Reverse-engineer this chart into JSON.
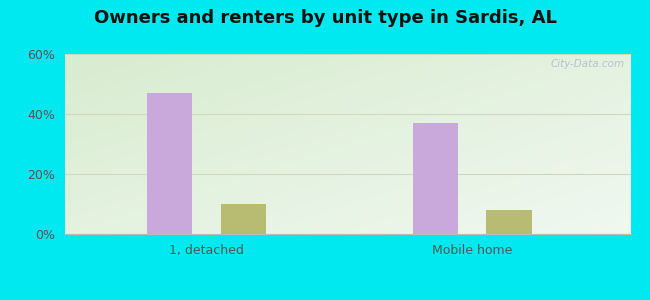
{
  "title": "Owners and renters by unit type in Sardis, AL",
  "categories": [
    "1, detached",
    "Mobile home"
  ],
  "owner_values": [
    47,
    37
  ],
  "renter_values": [
    10,
    8
  ],
  "owner_color": "#c9a8dc",
  "renter_color": "#b8bb72",
  "ylim": [
    0,
    60
  ],
  "yticks": [
    0,
    20,
    40,
    60
  ],
  "ytick_labels": [
    "0%",
    "20%",
    "40%",
    "60%"
  ],
  "bar_width": 0.08,
  "outer_bg": "#00e8f0",
  "watermark": "City-Data.com",
  "title_fontsize": 13,
  "axis_fontsize": 9,
  "grid_color": "#d0d8c0"
}
